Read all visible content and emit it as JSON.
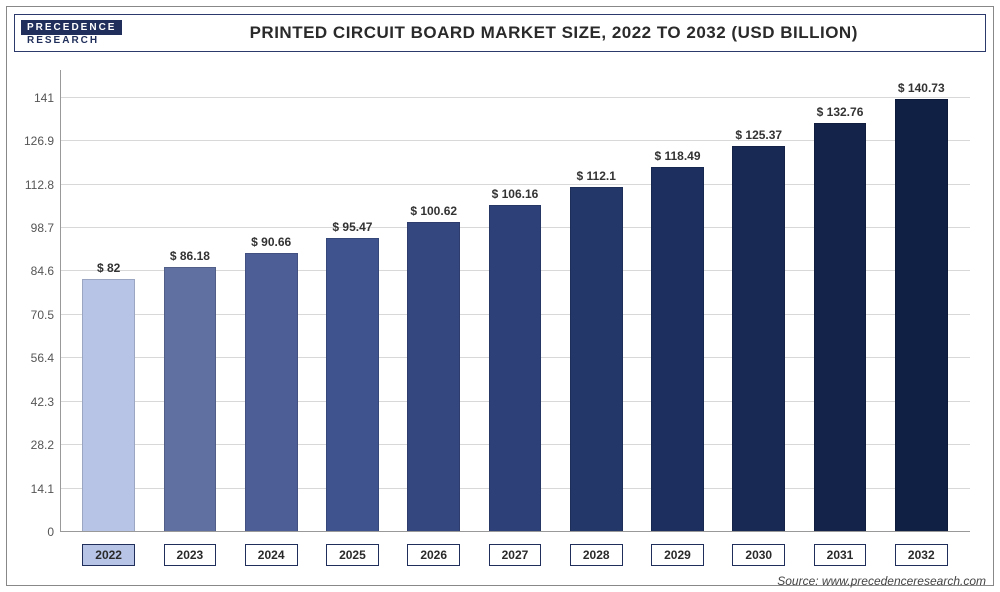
{
  "logo": {
    "top": "PRECEDENCE",
    "bottom": "RESEARCH"
  },
  "title": "PRINTED CIRCUIT BOARD MARKET SIZE, 2022 TO 2032 (USD BILLION)",
  "source": "Source: www.precedenceresearch.com",
  "chart": {
    "type": "bar",
    "ylim": [
      0,
      150
    ],
    "yticks": [
      0,
      14.1,
      28.2,
      42.3,
      56.4,
      70.5,
      84.6,
      98.7,
      112.8,
      126.9,
      141
    ],
    "ytick_labels": [
      "0",
      "14.1",
      "28.2",
      "42.3",
      "56.4",
      "70.5",
      "84.6",
      "98.7",
      "112.8",
      "126.9",
      "141"
    ],
    "grid_color": "#d8d8d8",
    "background_color": "#ffffff",
    "label_fontsize": 12,
    "value_fontsize": 12,
    "bar_width": 0.72,
    "categories": [
      "2022",
      "2023",
      "2024",
      "2025",
      "2026",
      "2027",
      "2028",
      "2029",
      "2030",
      "2031",
      "2032"
    ],
    "value_labels": [
      "$ 82",
      "$ 86.18",
      "$ 90.66",
      "$ 95.47",
      "$ 100.62",
      "$ 106.16",
      "$ 112.1",
      "$ 118.49",
      "$ 125.37",
      "$ 132.76",
      "$ 140.73"
    ],
    "values": [
      82,
      86.18,
      90.66,
      95.47,
      100.62,
      106.16,
      112.1,
      118.49,
      125.37,
      132.76,
      140.73
    ],
    "bar_colors": [
      "#b7c4e6",
      "#6070a0",
      "#4d5e97",
      "#3f538f",
      "#35477f",
      "#2d4178",
      "#233768",
      "#1c2f5e",
      "#182954",
      "#13234a",
      "#101f44"
    ]
  }
}
